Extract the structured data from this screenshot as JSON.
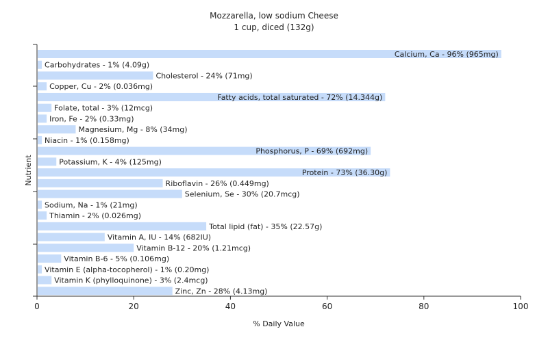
{
  "chart_data": {
    "type": "bar",
    "orientation": "horizontal",
    "title": "Mozzarella, low sodium Cheese",
    "subtitle": "1 cup, diced (132g)",
    "xlabel": "% Daily Value",
    "ylabel": "Nutrient",
    "xlim": [
      0,
      100
    ],
    "x_ticks": [
      "0",
      "20",
      "40",
      "60",
      "80",
      "100"
    ],
    "grid": false,
    "bar_color": "#c6dcfa",
    "categories": [
      "Calcium, Ca",
      "Carbohydrates",
      "Cholesterol",
      "Copper, Cu",
      "Fatty acids, total saturated",
      "Folate, total",
      "Iron, Fe",
      "Magnesium, Mg",
      "Niacin",
      "Phosphorus, P",
      "Potassium, K",
      "Protein",
      "Riboflavin",
      "Selenium, Se",
      "Sodium, Na",
      "Thiamin",
      "Total lipid (fat)",
      "Vitamin A, IU",
      "Vitamin B-12",
      "Vitamin B-6",
      "Vitamin E (alpha-tocopherol)",
      "Vitamin K (phylloquinone)",
      "Zinc, Zn"
    ],
    "values": [
      96,
      1,
      24,
      2,
      72,
      3,
      2,
      8,
      1,
      69,
      4,
      73,
      26,
      30,
      1,
      2,
      35,
      14,
      20,
      5,
      1,
      3,
      28
    ],
    "labels": [
      "Calcium, Ca - 96% (965mg)",
      "Carbohydrates - 1% (4.09g)",
      "Cholesterol - 24% (71mg)",
      "Copper, Cu - 2% (0.036mg)",
      "Fatty acids, total saturated - 72% (14.344g)",
      "Folate, total - 3% (12mcg)",
      "Iron, Fe - 2% (0.33mg)",
      "Magnesium, Mg - 8% (34mg)",
      "Niacin - 1% (0.158mg)",
      "Phosphorus, P - 69% (692mg)",
      "Potassium, K - 4% (125mg)",
      "Protein - 73% (36.30g)",
      "Riboflavin - 26% (0.449mg)",
      "Selenium, Se - 30% (20.7mcg)",
      "Sodium, Na - 1% (21mg)",
      "Thiamin - 2% (0.026mg)",
      "Total lipid (fat) - 35% (22.57g)",
      "Vitamin A, IU - 14% (682IU)",
      "Vitamin B-12 - 20% (1.21mcg)",
      "Vitamin B-6 - 5% (0.106mg)",
      "Vitamin E (alpha-tocopherol) - 1% (0.20mg)",
      "Vitamin K (phylloquinone) - 3% (2.4mcg)",
      "Zinc, Zn - 28% (4.13mg)"
    ]
  }
}
